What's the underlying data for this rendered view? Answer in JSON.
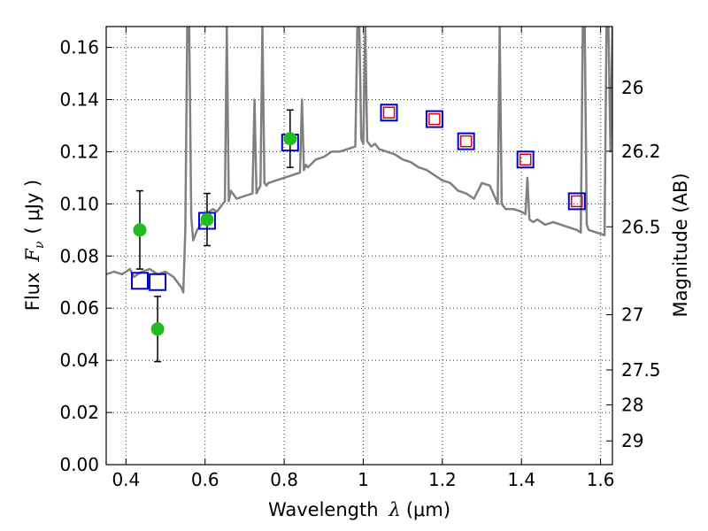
{
  "chart_data": {
    "type": "scatter",
    "xlabel_prefix": "Wavelength",
    "xlabel_symbol": "λ",
    "xlabel_unit": "(μm)",
    "ylabel_prefix": "Flux",
    "ylabel_symbol": "F",
    "ylabel_subscript": "ν",
    "ylabel_unit": "( μJy )",
    "y2label": "Magnitude (AB)",
    "xlim": [
      0.35,
      1.63
    ],
    "ylim": [
      0.0,
      0.168
    ],
    "x_ticks": [
      0.4,
      0.6,
      0.8,
      1.0,
      1.2,
      1.4,
      1.6
    ],
    "x_tick_labels": [
      "0.4",
      "0.6",
      "0.8",
      "1",
      "1.2",
      "1.4",
      "1.6"
    ],
    "y_ticks": [
      0.0,
      0.02,
      0.04,
      0.06,
      0.08,
      0.1,
      0.12,
      0.14,
      0.16
    ],
    "y_tick_labels": [
      "0.00",
      "0.02",
      "0.04",
      "0.06",
      "0.08",
      "0.10",
      "0.12",
      "0.14",
      "0.16"
    ],
    "y2_ticks": [
      {
        "flux": 0.1445,
        "label": "26"
      },
      {
        "flux": 0.1202,
        "label": "26.2"
      },
      {
        "flux": 0.0912,
        "label": "26.5"
      },
      {
        "flux": 0.0575,
        "label": "27"
      },
      {
        "flux": 0.0363,
        "label": "27.5"
      },
      {
        "flux": 0.0229,
        "label": "28"
      },
      {
        "flux": 0.0091,
        "label": "29"
      }
    ],
    "colors": {
      "model": "#808080",
      "observed": "#22bb22",
      "model_box": "#0000cc",
      "model_box_inner": "#dd0000",
      "errorbar": "#000000"
    },
    "series": [
      {
        "name": "model_spectrum",
        "kind": "line",
        "x": [
          0.35,
          0.37,
          0.39,
          0.41,
          0.42,
          0.44,
          0.46,
          0.48,
          0.5,
          0.52,
          0.53,
          0.54,
          0.545,
          0.55,
          0.555,
          0.56,
          0.565,
          0.57,
          0.58,
          0.59,
          0.6,
          0.61,
          0.62,
          0.63,
          0.64,
          0.65,
          0.655,
          0.66,
          0.665,
          0.67,
          0.68,
          0.7,
          0.72,
          0.725,
          0.73,
          0.74,
          0.745,
          0.75,
          0.755,
          0.76,
          0.78,
          0.8,
          0.82,
          0.84,
          0.845,
          0.85,
          0.855,
          0.86,
          0.88,
          0.9,
          0.92,
          0.94,
          0.96,
          0.98,
          0.985,
          0.99,
          0.995,
          1.0,
          1.005,
          1.01,
          1.02,
          1.03,
          1.04,
          1.06,
          1.08,
          1.1,
          1.12,
          1.14,
          1.16,
          1.18,
          1.2,
          1.22,
          1.24,
          1.26,
          1.28,
          1.3,
          1.32,
          1.34,
          1.345,
          1.35,
          1.355,
          1.36,
          1.38,
          1.4,
          1.41,
          1.415,
          1.42,
          1.43,
          1.44,
          1.46,
          1.48,
          1.5,
          1.52,
          1.54,
          1.55,
          1.555,
          1.56,
          1.565,
          1.57,
          1.59,
          1.61,
          1.615,
          1.62,
          1.625,
          1.63
        ],
        "y": [
          0.073,
          0.074,
          0.073,
          0.075,
          0.072,
          0.074,
          0.075,
          0.073,
          0.074,
          0.072,
          0.07,
          0.068,
          0.066,
          0.09,
          0.168,
          0.168,
          0.095,
          0.086,
          0.09,
          0.092,
          0.096,
          0.097,
          0.098,
          0.097,
          0.099,
          0.101,
          0.168,
          0.101,
          0.105,
          0.104,
          0.102,
          0.103,
          0.104,
          0.14,
          0.104,
          0.107,
          0.168,
          0.108,
          0.107,
          0.108,
          0.109,
          0.11,
          0.111,
          0.112,
          0.14,
          0.113,
          0.115,
          0.114,
          0.117,
          0.118,
          0.12,
          0.12,
          0.121,
          0.122,
          0.168,
          0.168,
          0.125,
          0.123,
          0.168,
          0.124,
          0.122,
          0.123,
          0.121,
          0.12,
          0.119,
          0.117,
          0.116,
          0.114,
          0.113,
          0.111,
          0.109,
          0.108,
          0.105,
          0.104,
          0.102,
          0.108,
          0.107,
          0.1,
          0.168,
          0.1,
          0.099,
          0.098,
          0.098,
          0.097,
          0.096,
          0.11,
          0.094,
          0.093,
          0.094,
          0.092,
          0.093,
          0.092,
          0.091,
          0.09,
          0.089,
          0.168,
          0.168,
          0.092,
          0.09,
          0.089,
          0.088,
          0.168,
          0.168,
          0.12,
          0.168
        ]
      },
      {
        "name": "observed",
        "kind": "points_with_errors",
        "x": [
          0.435,
          0.48,
          0.605,
          0.815
        ],
        "y": [
          0.09,
          0.052,
          0.094,
          0.125
        ],
        "yerr": [
          0.015,
          0.0125,
          0.01,
          0.011
        ]
      },
      {
        "name": "model_photometry",
        "kind": "open_squares",
        "x": [
          0.435,
          0.48,
          0.605,
          0.815,
          1.065,
          1.18,
          1.26,
          1.41,
          1.54
        ],
        "y": [
          0.0705,
          0.07,
          0.0935,
          0.1235,
          0.135,
          0.1325,
          0.124,
          0.117,
          0.101
        ],
        "inner_red": [
          false,
          false,
          false,
          false,
          true,
          true,
          true,
          true,
          true
        ]
      }
    ]
  }
}
